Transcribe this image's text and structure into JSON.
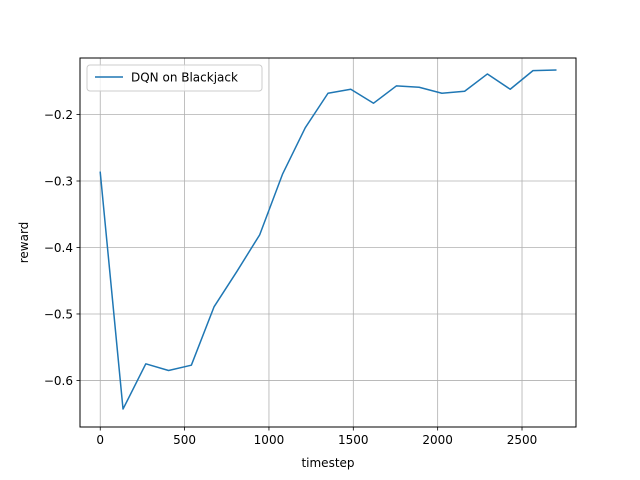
{
  "chart_data": {
    "type": "line",
    "title": "",
    "xlabel": "timestep",
    "ylabel": "reward",
    "xlim": [
      -120,
      2820
    ],
    "ylim": [
      -0.67,
      -0.115
    ],
    "grid": true,
    "legend_position": "top-left",
    "x_ticks": [
      0,
      500,
      1000,
      1500,
      2000,
      2500
    ],
    "x_tick_labels": [
      "0",
      "500",
      "1000",
      "1500",
      "2000",
      "2500"
    ],
    "y_ticks": [
      -0.6,
      -0.5,
      -0.4,
      -0.3,
      -0.2
    ],
    "y_tick_labels": [
      "−0.6",
      "−0.5",
      "−0.4",
      "−0.3",
      "−0.2"
    ],
    "series": [
      {
        "name": "DQN on Blackjack",
        "color": "#1f77b4",
        "x": [
          0,
          135,
          270,
          405,
          540,
          675,
          810,
          945,
          1080,
          1215,
          1350,
          1485,
          1620,
          1755,
          1890,
          2025,
          2160,
          2295,
          2430,
          2565,
          2700
        ],
        "y": [
          -0.287,
          -0.643,
          -0.575,
          -0.585,
          -0.577,
          -0.489,
          -0.436,
          -0.381,
          -0.29,
          -0.22,
          -0.168,
          -0.162,
          -0.183,
          -0.157,
          -0.159,
          -0.168,
          -0.165,
          -0.139,
          -0.162,
          -0.134,
          -0.133
        ]
      }
    ]
  }
}
